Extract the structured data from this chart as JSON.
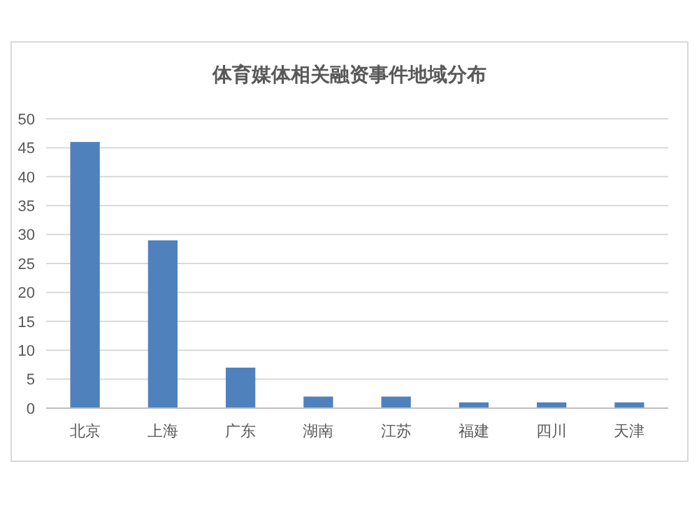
{
  "chart_data": {
    "type": "bar",
    "title": "体育媒体相关融资事件地域分布",
    "categories": [
      "北京",
      "上海",
      "广东",
      "湖南",
      "江苏",
      "福建",
      "四川",
      "天津"
    ],
    "values": [
      46,
      29,
      7,
      2,
      2,
      1,
      1,
      1
    ],
    "color": "#4f81bd",
    "ylim": [
      0,
      50
    ],
    "yticks": [
      0,
      5,
      10,
      15,
      20,
      25,
      30,
      35,
      40,
      45,
      50
    ],
    "grid": "y"
  }
}
